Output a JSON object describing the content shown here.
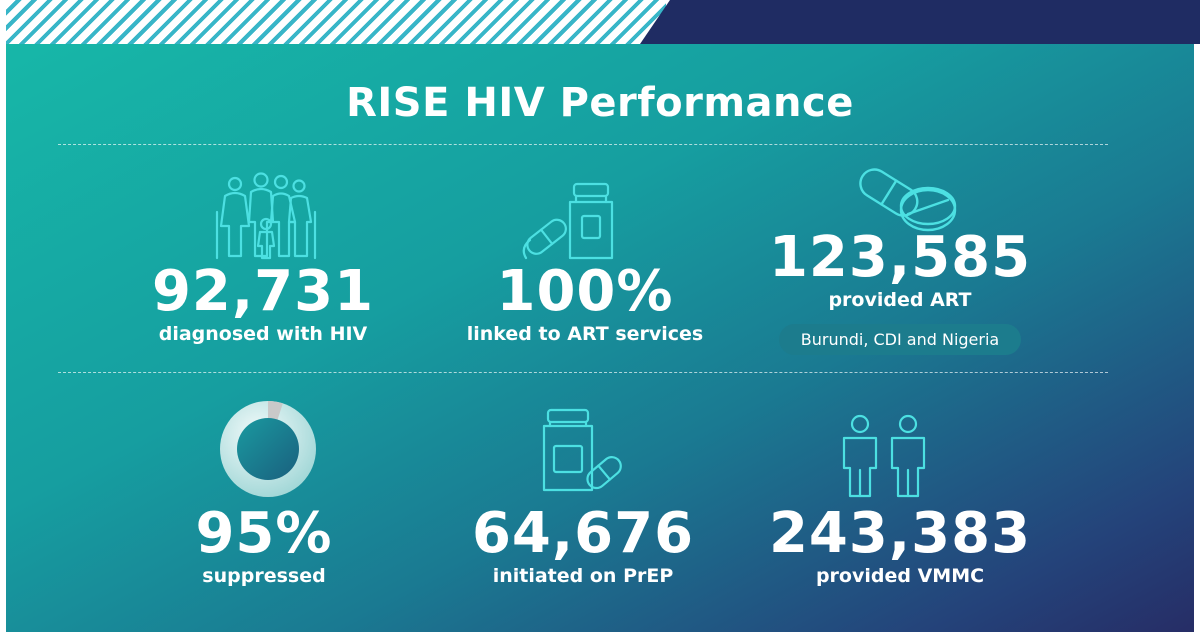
{
  "title": "RISE HIV Performance",
  "colors": {
    "accent": "#4ce0e2",
    "navy": "#1f2c63",
    "teal": "#17b7a8"
  },
  "stats": [
    {
      "value": "92,731",
      "label": "diagnosed with HIV",
      "icon": "family-icon"
    },
    {
      "value": "100%",
      "label": "linked to ART services",
      "icon": "medicine-bottle-icon"
    },
    {
      "value": "123,585",
      "label": "provided ART",
      "icon": "pills-icon",
      "note": "Burundi, CDI and Nigeria"
    },
    {
      "value": "95%",
      "label": "suppressed",
      "icon": "donut-chart-icon",
      "fraction": 0.95
    },
    {
      "value": "64,676",
      "label": "initiated on PrEP",
      "icon": "prep-bottle-icon"
    },
    {
      "value": "243,383",
      "label": "provided VMMC",
      "icon": "two-men-icon"
    }
  ]
}
